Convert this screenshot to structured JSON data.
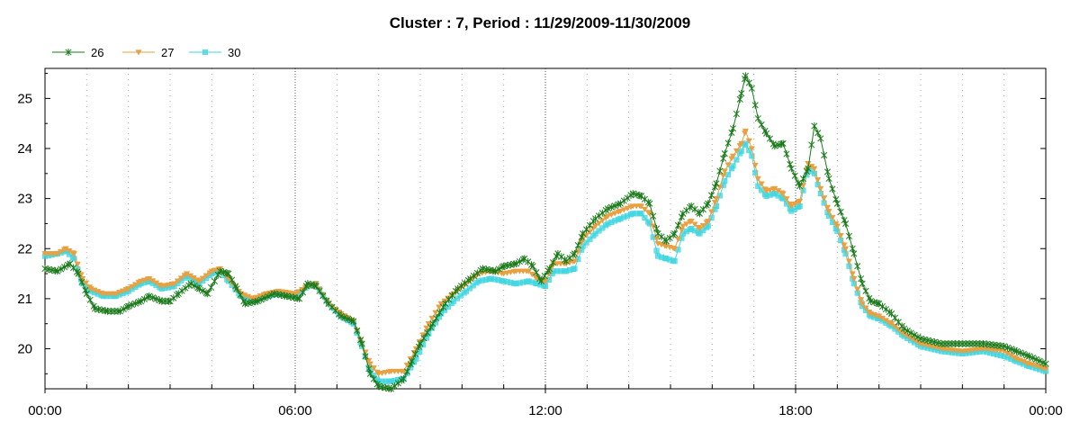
{
  "chart_data": {
    "type": "line",
    "title": "Cluster : 7, Period : 11/29/2009-11/30/2009",
    "xlabel": "",
    "ylabel": "",
    "x_ticks": [
      "00:00",
      "06:00",
      "12:00",
      "18:00",
      "00:00"
    ],
    "x_tick_hours": [
      0,
      6,
      12,
      18,
      24
    ],
    "y_ticks": [
      20,
      21,
      22,
      23,
      24,
      25
    ],
    "xlim": [
      0,
      24
    ],
    "ylim": [
      19.2,
      25.6
    ],
    "grid": true,
    "legend_position": "top-left",
    "series": [
      {
        "name": "26",
        "color": "#1a7a1a",
        "marker": "star",
        "points": [
          [
            0,
            21.6
          ],
          [
            0.3,
            21.55
          ],
          [
            0.6,
            21.7
          ],
          [
            0.8,
            21.5
          ],
          [
            1.0,
            21.1
          ],
          [
            1.2,
            20.8
          ],
          [
            1.5,
            20.75
          ],
          [
            1.8,
            20.75
          ],
          [
            2.0,
            20.85
          ],
          [
            2.3,
            20.95
          ],
          [
            2.5,
            21.05
          ],
          [
            2.8,
            20.95
          ],
          [
            3.0,
            20.95
          ],
          [
            3.2,
            21.1
          ],
          [
            3.5,
            21.3
          ],
          [
            3.7,
            21.2
          ],
          [
            3.9,
            21.1
          ],
          [
            4.2,
            21.55
          ],
          [
            4.4,
            21.5
          ],
          [
            4.6,
            21.2
          ],
          [
            4.8,
            20.9
          ],
          [
            5.1,
            20.95
          ],
          [
            5.5,
            21.1
          ],
          [
            5.8,
            21.05
          ],
          [
            6.1,
            21.0
          ],
          [
            6.3,
            21.3
          ],
          [
            6.5,
            21.25
          ],
          [
            6.8,
            20.9
          ],
          [
            7.1,
            20.65
          ],
          [
            7.4,
            20.55
          ],
          [
            7.6,
            20.1
          ],
          [
            7.8,
            19.5
          ],
          [
            8.0,
            19.25
          ],
          [
            8.3,
            19.2
          ],
          [
            8.6,
            19.4
          ],
          [
            8.8,
            19.75
          ],
          [
            9.0,
            20.1
          ],
          [
            9.3,
            20.5
          ],
          [
            9.6,
            20.9
          ],
          [
            9.9,
            21.2
          ],
          [
            10.2,
            21.4
          ],
          [
            10.5,
            21.6
          ],
          [
            10.8,
            21.55
          ],
          [
            11.0,
            21.65
          ],
          [
            11.3,
            21.7
          ],
          [
            11.5,
            21.8
          ],
          [
            11.7,
            21.65
          ],
          [
            11.9,
            21.35
          ],
          [
            12.1,
            21.6
          ],
          [
            12.3,
            21.9
          ],
          [
            12.5,
            21.75
          ],
          [
            12.7,
            21.9
          ],
          [
            12.9,
            22.3
          ],
          [
            13.2,
            22.6
          ],
          [
            13.5,
            22.8
          ],
          [
            13.8,
            22.9
          ],
          [
            14.1,
            23.1
          ],
          [
            14.3,
            23.05
          ],
          [
            14.5,
            22.9
          ],
          [
            14.7,
            22.3
          ],
          [
            14.9,
            22.15
          ],
          [
            15.1,
            22.3
          ],
          [
            15.3,
            22.7
          ],
          [
            15.5,
            22.85
          ],
          [
            15.7,
            22.7
          ],
          [
            15.9,
            22.9
          ],
          [
            16.1,
            23.3
          ],
          [
            16.3,
            23.9
          ],
          [
            16.5,
            24.4
          ],
          [
            16.7,
            25.1
          ],
          [
            16.8,
            25.45
          ],
          [
            16.95,
            25.2
          ],
          [
            17.1,
            24.6
          ],
          [
            17.3,
            24.3
          ],
          [
            17.5,
            24.05
          ],
          [
            17.7,
            24.1
          ],
          [
            17.9,
            23.6
          ],
          [
            18.1,
            23.25
          ],
          [
            18.3,
            23.6
          ],
          [
            18.45,
            24.45
          ],
          [
            18.6,
            24.2
          ],
          [
            18.8,
            23.4
          ],
          [
            19.0,
            22.9
          ],
          [
            19.2,
            22.5
          ],
          [
            19.4,
            21.9
          ],
          [
            19.6,
            21.3
          ],
          [
            19.8,
            20.95
          ],
          [
            20.0,
            20.9
          ],
          [
            20.3,
            20.7
          ],
          [
            20.6,
            20.4
          ],
          [
            21.0,
            20.2
          ],
          [
            21.5,
            20.1
          ],
          [
            22.0,
            20.1
          ],
          [
            22.5,
            20.1
          ],
          [
            23.0,
            20.05
          ],
          [
            23.3,
            19.95
          ],
          [
            23.6,
            19.85
          ],
          [
            24.0,
            19.7
          ]
        ]
      },
      {
        "name": "27",
        "color": "#e8a040",
        "marker": "triangle",
        "points": [
          [
            0,
            21.9
          ],
          [
            0.3,
            21.9
          ],
          [
            0.5,
            22.0
          ],
          [
            0.7,
            21.9
          ],
          [
            0.9,
            21.4
          ],
          [
            1.1,
            21.2
          ],
          [
            1.4,
            21.1
          ],
          [
            1.7,
            21.1
          ],
          [
            2.0,
            21.2
          ],
          [
            2.3,
            21.35
          ],
          [
            2.5,
            21.4
          ],
          [
            2.8,
            21.25
          ],
          [
            3.1,
            21.3
          ],
          [
            3.4,
            21.5
          ],
          [
            3.7,
            21.35
          ],
          [
            4.0,
            21.55
          ],
          [
            4.2,
            21.6
          ],
          [
            4.4,
            21.4
          ],
          [
            4.7,
            21.1
          ],
          [
            5.0,
            21.0
          ],
          [
            5.3,
            21.1
          ],
          [
            5.6,
            21.15
          ],
          [
            6.0,
            21.1
          ],
          [
            6.3,
            21.25
          ],
          [
            6.5,
            21.3
          ],
          [
            6.8,
            20.9
          ],
          [
            7.1,
            20.7
          ],
          [
            7.4,
            20.55
          ],
          [
            7.6,
            20.1
          ],
          [
            7.8,
            19.7
          ],
          [
            8.0,
            19.5
          ],
          [
            8.3,
            19.55
          ],
          [
            8.6,
            19.55
          ],
          [
            8.9,
            20.0
          ],
          [
            9.2,
            20.5
          ],
          [
            9.5,
            20.9
          ],
          [
            9.8,
            21.1
          ],
          [
            10.1,
            21.3
          ],
          [
            10.4,
            21.5
          ],
          [
            10.7,
            21.55
          ],
          [
            11.0,
            21.5
          ],
          [
            11.3,
            21.55
          ],
          [
            11.6,
            21.55
          ],
          [
            11.8,
            21.4
          ],
          [
            12.0,
            21.35
          ],
          [
            12.2,
            21.7
          ],
          [
            12.5,
            21.7
          ],
          [
            12.7,
            21.75
          ],
          [
            12.9,
            22.2
          ],
          [
            13.2,
            22.45
          ],
          [
            13.5,
            22.65
          ],
          [
            13.8,
            22.75
          ],
          [
            14.1,
            22.85
          ],
          [
            14.3,
            22.85
          ],
          [
            14.5,
            22.7
          ],
          [
            14.7,
            22.1
          ],
          [
            14.9,
            22.05
          ],
          [
            15.1,
            22.0
          ],
          [
            15.3,
            22.45
          ],
          [
            15.5,
            22.55
          ],
          [
            15.7,
            22.4
          ],
          [
            15.9,
            22.55
          ],
          [
            16.1,
            23.0
          ],
          [
            16.3,
            23.55
          ],
          [
            16.5,
            23.85
          ],
          [
            16.7,
            24.1
          ],
          [
            16.8,
            24.35
          ],
          [
            16.95,
            24.0
          ],
          [
            17.1,
            23.4
          ],
          [
            17.3,
            23.15
          ],
          [
            17.5,
            23.2
          ],
          [
            17.7,
            23.1
          ],
          [
            17.9,
            22.85
          ],
          [
            18.1,
            22.95
          ],
          [
            18.3,
            23.7
          ],
          [
            18.45,
            23.6
          ],
          [
            18.6,
            23.2
          ],
          [
            18.8,
            22.75
          ],
          [
            19.0,
            22.45
          ],
          [
            19.2,
            22.0
          ],
          [
            19.4,
            21.4
          ],
          [
            19.6,
            20.9
          ],
          [
            19.8,
            20.7
          ],
          [
            20.0,
            20.65
          ],
          [
            20.3,
            20.5
          ],
          [
            20.6,
            20.3
          ],
          [
            21.0,
            20.1
          ],
          [
            21.5,
            20.0
          ],
          [
            22.0,
            19.95
          ],
          [
            22.5,
            20.0
          ],
          [
            23.0,
            19.95
          ],
          [
            23.3,
            19.8
          ],
          [
            23.6,
            19.7
          ],
          [
            24.0,
            19.6
          ]
        ]
      },
      {
        "name": "30",
        "color": "#3fd6e0",
        "marker": "square",
        "points": [
          [
            0,
            21.85
          ],
          [
            0.3,
            21.9
          ],
          [
            0.5,
            21.95
          ],
          [
            0.7,
            21.8
          ],
          [
            0.9,
            21.3
          ],
          [
            1.1,
            21.15
          ],
          [
            1.4,
            21.05
          ],
          [
            1.7,
            21.05
          ],
          [
            2.0,
            21.15
          ],
          [
            2.3,
            21.3
          ],
          [
            2.5,
            21.35
          ],
          [
            2.8,
            21.2
          ],
          [
            3.1,
            21.25
          ],
          [
            3.4,
            21.45
          ],
          [
            3.7,
            21.3
          ],
          [
            4.0,
            21.5
          ],
          [
            4.2,
            21.55
          ],
          [
            4.4,
            21.35
          ],
          [
            4.7,
            21.05
          ],
          [
            5.0,
            20.95
          ],
          [
            5.3,
            21.05
          ],
          [
            5.6,
            21.1
          ],
          [
            6.0,
            21.05
          ],
          [
            6.3,
            21.25
          ],
          [
            6.5,
            21.3
          ],
          [
            6.8,
            20.9
          ],
          [
            7.1,
            20.65
          ],
          [
            7.4,
            20.5
          ],
          [
            7.6,
            20.05
          ],
          [
            7.8,
            19.55
          ],
          [
            8.0,
            19.35
          ],
          [
            8.3,
            19.35
          ],
          [
            8.6,
            19.4
          ],
          [
            8.9,
            19.8
          ],
          [
            9.2,
            20.3
          ],
          [
            9.5,
            20.7
          ],
          [
            9.8,
            20.95
          ],
          [
            10.1,
            21.15
          ],
          [
            10.4,
            21.35
          ],
          [
            10.7,
            21.4
          ],
          [
            11.0,
            21.35
          ],
          [
            11.3,
            21.3
          ],
          [
            11.6,
            21.35
          ],
          [
            11.8,
            21.3
          ],
          [
            12.0,
            21.25
          ],
          [
            12.2,
            21.55
          ],
          [
            12.5,
            21.55
          ],
          [
            12.7,
            21.6
          ],
          [
            12.9,
            22.05
          ],
          [
            13.2,
            22.3
          ],
          [
            13.5,
            22.5
          ],
          [
            13.8,
            22.6
          ],
          [
            14.1,
            22.7
          ],
          [
            14.3,
            22.7
          ],
          [
            14.5,
            22.5
          ],
          [
            14.7,
            21.85
          ],
          [
            14.9,
            21.8
          ],
          [
            15.1,
            21.75
          ],
          [
            15.3,
            22.3
          ],
          [
            15.5,
            22.4
          ],
          [
            15.7,
            22.3
          ],
          [
            15.9,
            22.45
          ],
          [
            16.1,
            22.85
          ],
          [
            16.3,
            23.35
          ],
          [
            16.5,
            23.65
          ],
          [
            16.7,
            23.95
          ],
          [
            16.8,
            24.1
          ],
          [
            16.95,
            23.85
          ],
          [
            17.1,
            23.25
          ],
          [
            17.3,
            23.05
          ],
          [
            17.5,
            23.1
          ],
          [
            17.7,
            23.0
          ],
          [
            17.9,
            22.75
          ],
          [
            18.1,
            22.85
          ],
          [
            18.3,
            23.6
          ],
          [
            18.45,
            23.5
          ],
          [
            18.6,
            23.1
          ],
          [
            18.8,
            22.65
          ],
          [
            19.0,
            22.35
          ],
          [
            19.2,
            21.9
          ],
          [
            19.4,
            21.3
          ],
          [
            19.6,
            20.85
          ],
          [
            19.8,
            20.65
          ],
          [
            20.0,
            20.6
          ],
          [
            20.3,
            20.45
          ],
          [
            20.6,
            20.25
          ],
          [
            21.0,
            20.05
          ],
          [
            21.5,
            19.95
          ],
          [
            22.0,
            19.9
          ],
          [
            22.5,
            19.95
          ],
          [
            23.0,
            19.85
          ],
          [
            23.3,
            19.75
          ],
          [
            23.6,
            19.65
          ],
          [
            24.0,
            19.55
          ]
        ]
      }
    ]
  }
}
